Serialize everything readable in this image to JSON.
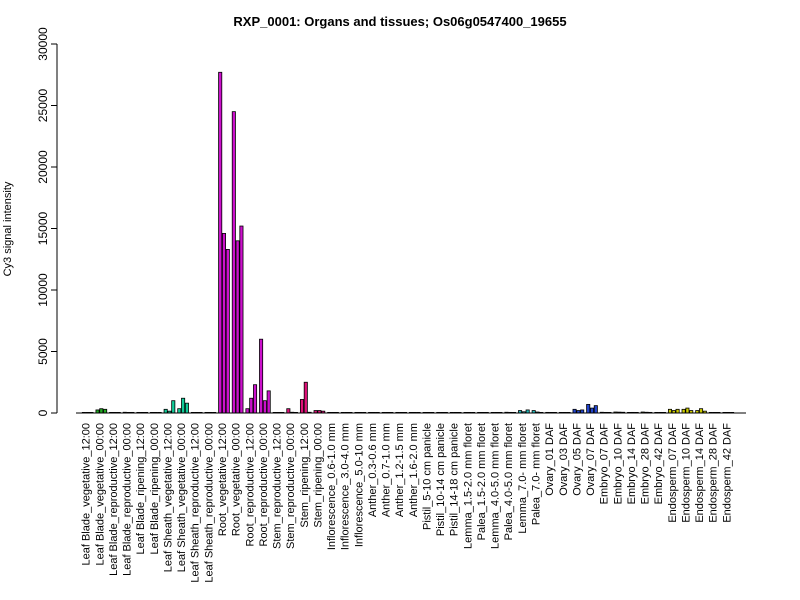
{
  "chart_data": {
    "type": "bar",
    "title": "RXP_0001: Organs and tissues; Os06g0547400_19655",
    "xlabel": "",
    "ylabel": "Cy3 signal intensity",
    "ylim": [
      0,
      30000
    ],
    "yticks": [
      0,
      5000,
      10000,
      15000,
      20000,
      25000,
      30000
    ],
    "ytick_labels": [
      "0",
      "5000",
      "10000",
      "15000",
      "20000",
      "25000",
      "30000"
    ],
    "grid": false,
    "categories": [
      "Leaf Blade_vegetative_12:00",
      "Leaf Blade_vegetative_00:00",
      "Leaf Blade_reproductive_12:00",
      "Leaf Blade_reproductive_00:00",
      "Leaf Blade_ripening_12:00",
      "Leaf Blade_ripening_00:00",
      "Leaf Sheath_vegetative_12:00",
      "Leaf Sheath_vegetative_00:00",
      "Leaf Sheath_reproductive_12:00",
      "Leaf Sheath_reproductive_00:00",
      "Root_vegetative_12:00",
      "Root_vegetative_00:00",
      "Root_reproductive_12:00",
      "Root_reproductive_00:00",
      "Stem_reproductive_12:00",
      "Stem_reproductive_00:00",
      "Stem_ripening_12:00",
      "Stem_ripening_00:00",
      "Inflorescence_0.6-1.0 mm",
      "Inflorescence_3.0-4.0 mm",
      "Inflorescence_5.0-10 mm",
      "Anther_0.3-0.6 mm",
      "Anther_0.7-1.0 mm",
      "Anther_1.2-1.5 mm",
      "Anther_1.6-2.0 mm",
      "Pistil_5-10 cm panicle",
      "Pistil_10-14 cm panicle",
      "Pistil_14-18 cm panicle",
      "Lemma_1.5-2.0 mm floret",
      "Palea_1.5-2.0 mm floret",
      "Lemma_4.0-5.0 mm floret",
      "Palea_4.0-5.0 mm floret",
      "Lemma_7.0- mm floret",
      "Palea_7.0- mm floret",
      "Ovary_01 DAF",
      "Ovary_03 DAF",
      "Ovary_05 DAF",
      "Ovary_07 DAF",
      "Embryo_07 DAF",
      "Embryo_10 DAF",
      "Embryo_14 DAF",
      "Embryo_28 DAF",
      "Embryo_42 DAF",
      "Endosperm_07 DAF",
      "Endosperm_10 DAF",
      "Endosperm_14 DAF",
      "Endosperm_28 DAF",
      "Endosperm_42 DAF"
    ],
    "group_colors": [
      "#22aa22",
      "#22aa22",
      "#22aa22",
      "#22aa22",
      "#22aa22",
      "#22aa22",
      "#11cc99",
      "#11cc99",
      "#11cc99",
      "#11cc99",
      "#cc11cc",
      "#cc11cc",
      "#cc11cc",
      "#cc11cc",
      "#dd1177",
      "#dd1177",
      "#dd1177",
      "#dd1177",
      "#888888",
      "#888888",
      "#888888",
      "#888888",
      "#888888",
      "#888888",
      "#888888",
      "#888888",
      "#888888",
      "#888888",
      "#22bbbb",
      "#22bbbb",
      "#22bbbb",
      "#22bbbb",
      "#22bbbb",
      "#22bbbb",
      "#2244cc",
      "#2244cc",
      "#2244cc",
      "#2244cc",
      "#88aa22",
      "#88aa22",
      "#88aa22",
      "#88aa22",
      "#88aa22",
      "#cccc00",
      "#cccc00",
      "#cccc00",
      "#cccc00",
      "#cccc00"
    ],
    "values": [
      [
        20,
        15,
        10
      ],
      [
        250,
        350,
        300
      ],
      [
        30,
        25,
        20
      ],
      [
        60,
        40,
        50
      ],
      [
        20,
        15,
        20
      ],
      [
        25,
        20,
        15
      ],
      [
        300,
        150,
        1000
      ],
      [
        350,
        1200,
        800
      ],
      [
        20,
        20,
        15
      ],
      [
        25,
        20,
        20
      ],
      [
        27700,
        14600,
        13300
      ],
      [
        24500,
        14000,
        15200
      ],
      [
        350,
        1200,
        2300
      ],
      [
        6000,
        1000,
        1800
      ],
      [
        30,
        25,
        30
      ],
      [
        350,
        60,
        40
      ],
      [
        1100,
        2500,
        60
      ],
      [
        200,
        200,
        150
      ],
      [
        30,
        20,
        25
      ],
      [
        30,
        30,
        20
      ],
      [
        30,
        25,
        20
      ],
      [
        20,
        20,
        20
      ],
      [
        20,
        20,
        15
      ],
      [
        20,
        15,
        15
      ],
      [
        20,
        20,
        20
      ],
      [
        20,
        15,
        20
      ],
      [
        20,
        15,
        15
      ],
      [
        20,
        20,
        15
      ],
      [
        20,
        15,
        15
      ],
      [
        20,
        20,
        20
      ],
      [
        30,
        25,
        20
      ],
      [
        60,
        50,
        40
      ],
      [
        200,
        100,
        250
      ],
      [
        200,
        80,
        40
      ],
      [
        50,
        40,
        30
      ],
      [
        40,
        30,
        40
      ],
      [
        300,
        200,
        250
      ],
      [
        700,
        400,
        600
      ],
      [
        60,
        50,
        40
      ],
      [
        80,
        70,
        60
      ],
      [
        40,
        50,
        30
      ],
      [
        80,
        60,
        50
      ],
      [
        40,
        30,
        30
      ],
      [
        300,
        200,
        300
      ],
      [
        300,
        400,
        200
      ],
      [
        200,
        350,
        150
      ],
      [
        40,
        30,
        30
      ],
      [
        30,
        25,
        20
      ]
    ]
  }
}
